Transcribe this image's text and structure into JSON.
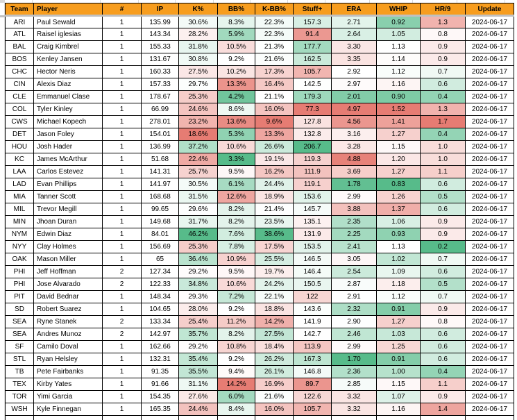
{
  "theme": {
    "header_bg": "#F79D1E",
    "grid_border": "#000000",
    "frozen_divider": "#C0C0C0",
    "gridline_light": "#D9D9D9"
  },
  "conditional_formatting": {
    "min_color": "#E67C73",
    "mid_color": "#FFFFFF",
    "max_color": "#57BB8A",
    "higher_better": [
      "kpct",
      "kbbpct",
      "stuff"
    ],
    "lower_better": [
      "bbpct",
      "era",
      "whip",
      "hr9"
    ]
  },
  "table": {
    "columns": [
      {
        "key": "team",
        "label": "Team"
      },
      {
        "key": "player",
        "label": "Player"
      },
      {
        "key": "num",
        "label": "#"
      },
      {
        "key": "ip",
        "label": "IP"
      },
      {
        "key": "kpct",
        "label": "K%"
      },
      {
        "key": "bbpct",
        "label": "BB%"
      },
      {
        "key": "kbbpct",
        "label": "K-BB%"
      },
      {
        "key": "stuff",
        "label": "Stuff+"
      },
      {
        "key": "era",
        "label": "ERA"
      },
      {
        "key": "whip",
        "label": "WHIP"
      },
      {
        "key": "hr9",
        "label": "HR/9"
      },
      {
        "key": "update",
        "label": "Update"
      }
    ],
    "rows": [
      {
        "team": "ARI",
        "player": "Paul Sewald",
        "num": "1",
        "ip": "135.99",
        "kpct": "30.6%",
        "bbpct": "8.3%",
        "kbbpct": "22.3%",
        "stuff": "157.3",
        "era": "2.71",
        "whip": "0.92",
        "hr9": "1.3",
        "update": "2024-06-17"
      },
      {
        "team": "ATL",
        "player": "Raisel iglesias",
        "num": "1",
        "ip": "143.34",
        "kpct": "28.2%",
        "bbpct": "5.9%",
        "kbbpct": "22.3%",
        "stuff": "91.4",
        "era": "2.64",
        "whip": "1.05",
        "hr9": "0.8",
        "update": "2024-06-17"
      },
      {
        "team": "BAL",
        "player": "Craig Kimbrel",
        "num": "1",
        "ip": "155.33",
        "kpct": "31.8%",
        "bbpct": "10.5%",
        "kbbpct": "21.3%",
        "stuff": "177.7",
        "era": "3.30",
        "whip": "1.13",
        "hr9": "0.9",
        "update": "2024-06-17"
      },
      {
        "team": "BOS",
        "player": "Kenley Jansen",
        "num": "1",
        "ip": "131.67",
        "kpct": "30.8%",
        "bbpct": "9.2%",
        "kbbpct": "21.6%",
        "stuff": "162.5",
        "era": "3.35",
        "whip": "1.14",
        "hr9": "0.9",
        "update": "2024-06-17"
      },
      {
        "team": "CHC",
        "player": "Hector Neris",
        "num": "1",
        "ip": "160.33",
        "kpct": "27.5%",
        "bbpct": "10.2%",
        "kbbpct": "17.3%",
        "stuff": "105.7",
        "era": "2.92",
        "whip": "1.12",
        "hr9": "0.7",
        "update": "2024-06-17"
      },
      {
        "team": "CIN",
        "player": "Alexis Diaz",
        "num": "1",
        "ip": "157.33",
        "kpct": "29.7%",
        "bbpct": "13.3%",
        "kbbpct": "16.4%",
        "stuff": "142.5",
        "era": "2.97",
        "whip": "1.16",
        "hr9": "0.6",
        "update": "2024-06-17"
      },
      {
        "team": "CLE",
        "player": "Emmanuel Clase",
        "num": "1",
        "ip": "178.67",
        "kpct": "25.3%",
        "bbpct": "4.2%",
        "kbbpct": "21.1%",
        "stuff": "179.3",
        "era": "2.01",
        "whip": "0.90",
        "hr9": "0.4",
        "update": "2024-06-17"
      },
      {
        "team": "COL",
        "player": "Tyler Kinley",
        "num": "1",
        "ip": "66.99",
        "kpct": "24.6%",
        "bbpct": "8.6%",
        "kbbpct": "16.0%",
        "stuff": "77.3",
        "era": "4.97",
        "whip": "1.52",
        "hr9": "1.3",
        "update": "2024-06-17"
      },
      {
        "team": "CWS",
        "player": "Michael Kopech",
        "num": "1",
        "ip": "278.01",
        "kpct": "23.2%",
        "bbpct": "13.6%",
        "kbbpct": "9.6%",
        "stuff": "127.8",
        "era": "4.56",
        "whip": "1.41",
        "hr9": "1.7",
        "update": "2024-06-17"
      },
      {
        "team": "DET",
        "player": "Jason Foley",
        "num": "1",
        "ip": "154.01",
        "kpct": "18.6%",
        "bbpct": "5.3%",
        "kbbpct": "13.3%",
        "stuff": "132.8",
        "era": "3.16",
        "whip": "1.27",
        "hr9": "0.4",
        "update": "2024-06-17"
      },
      {
        "team": "HOU",
        "player": "Josh Hader",
        "num": "1",
        "ip": "136.99",
        "kpct": "37.2%",
        "bbpct": "10.6%",
        "kbbpct": "26.6%",
        "stuff": "206.7",
        "era": "3.28",
        "whip": "1.15",
        "hr9": "1.0",
        "update": "2024-06-17"
      },
      {
        "team": "KC",
        "player": "James McArthur",
        "num": "1",
        "ip": "51.68",
        "kpct": "22.4%",
        "bbpct": "3.3%",
        "kbbpct": "19.1%",
        "stuff": "119.3",
        "era": "4.88",
        "whip": "1.20",
        "hr9": "1.0",
        "update": "2024-06-17"
      },
      {
        "team": "LAA",
        "player": "Carlos Estevez",
        "num": "1",
        "ip": "141.31",
        "kpct": "25.7%",
        "bbpct": "9.5%",
        "kbbpct": "16.2%",
        "stuff": "111.9",
        "era": "3.69",
        "whip": "1.27",
        "hr9": "1.1",
        "update": "2024-06-17"
      },
      {
        "team": "LAD",
        "player": "Evan Phillips",
        "num": "1",
        "ip": "141.97",
        "kpct": "30.5%",
        "bbpct": "6.1%",
        "kbbpct": "24.4%",
        "stuff": "119.1",
        "era": "1.78",
        "whip": "0.83",
        "hr9": "0.6",
        "update": "2024-06-17"
      },
      {
        "team": "MIA",
        "player": "Tanner Scott",
        "num": "1",
        "ip": "168.68",
        "kpct": "31.5%",
        "bbpct": "12.6%",
        "kbbpct": "18.9%",
        "stuff": "153.6",
        "era": "2.99",
        "whip": "1.26",
        "hr9": "0.5",
        "update": "2024-06-17"
      },
      {
        "team": "MIL",
        "player": "Trevor Megill",
        "num": "1",
        "ip": "99.65",
        "kpct": "29.6%",
        "bbpct": "8.2%",
        "kbbpct": "21.4%",
        "stuff": "145.7",
        "era": "3.88",
        "whip": "1.37",
        "hr9": "0.6",
        "update": "2024-06-17"
      },
      {
        "team": "MIN",
        "player": "Jhoan Duran",
        "num": "1",
        "ip": "149.68",
        "kpct": "31.7%",
        "bbpct": "8.2%",
        "kbbpct": "23.5%",
        "stuff": "135.1",
        "era": "2.35",
        "whip": "1.06",
        "hr9": "0.9",
        "update": "2024-06-17"
      },
      {
        "team": "NYM",
        "player": "Edwin Diaz",
        "num": "1",
        "ip": "84.01",
        "kpct": "46.2%",
        "bbpct": "7.6%",
        "kbbpct": "38.6%",
        "stuff": "131.9",
        "era": "2.25",
        "whip": "0.93",
        "hr9": "0.9",
        "update": "2024-06-17"
      },
      {
        "team": "NYY",
        "player": "Clay Holmes",
        "num": "1",
        "ip": "156.69",
        "kpct": "25.3%",
        "bbpct": "7.8%",
        "kbbpct": "17.5%",
        "stuff": "153.5",
        "era": "2.41",
        "whip": "1.13",
        "hr9": "0.2",
        "update": "2024-06-17"
      },
      {
        "team": "OAK",
        "player": "Mason Miller",
        "num": "1",
        "ip": "65",
        "kpct": "36.4%",
        "bbpct": "10.9%",
        "kbbpct": "25.5%",
        "stuff": "146.5",
        "era": "3.05",
        "whip": "1.02",
        "hr9": "0.7",
        "update": "2024-06-17"
      },
      {
        "team": "PHI",
        "player": "Jeff Hoffman",
        "num": "2",
        "ip": "127.34",
        "kpct": "29.2%",
        "bbpct": "9.5%",
        "kbbpct": "19.7%",
        "stuff": "146.4",
        "era": "2.54",
        "whip": "1.09",
        "hr9": "0.6",
        "update": "2024-06-17"
      },
      {
        "team": "PHI",
        "player": "Jose Alvarado",
        "num": "2",
        "ip": "122.33",
        "kpct": "34.8%",
        "bbpct": "10.6%",
        "kbbpct": "24.2%",
        "stuff": "150.5",
        "era": "2.87",
        "whip": "1.18",
        "hr9": "0.5",
        "update": "2024-06-17"
      },
      {
        "team": "PIT",
        "player": "David Bednar",
        "num": "1",
        "ip": "148.34",
        "kpct": "29.3%",
        "bbpct": "7.2%",
        "kbbpct": "22.1%",
        "stuff": "122",
        "era": "2.91",
        "whip": "1.12",
        "hr9": "0.7",
        "update": "2024-06-17"
      },
      {
        "team": "SD",
        "player": "Robert Suarez",
        "num": "1",
        "ip": "104.65",
        "kpct": "28.0%",
        "bbpct": "9.2%",
        "kbbpct": "18.8%",
        "stuff": "143.6",
        "era": "2.32",
        "whip": "0.91",
        "hr9": "0.9",
        "update": "2024-06-17"
      },
      {
        "team": "SEA",
        "player": "Ryne Stanek",
        "num": "2",
        "ip": "133.34",
        "kpct": "25.4%",
        "bbpct": "11.2%",
        "kbbpct": "14.2%",
        "stuff": "141.9",
        "era": "2.90",
        "whip": "1.27",
        "hr9": "0.8",
        "update": "2024-06-17"
      },
      {
        "team": "SEA",
        "player": "Andres Munoz",
        "num": "2",
        "ip": "142.97",
        "kpct": "35.7%",
        "bbpct": "8.2%",
        "kbbpct": "27.5%",
        "stuff": "142.7",
        "era": "2.46",
        "whip": "1.03",
        "hr9": "0.6",
        "update": "2024-06-17"
      },
      {
        "team": "SF",
        "player": "Camilo Doval",
        "num": "1",
        "ip": "162.66",
        "kpct": "29.2%",
        "bbpct": "10.8%",
        "kbbpct": "18.4%",
        "stuff": "113.9",
        "era": "2.99",
        "whip": "1.25",
        "hr9": "0.6",
        "update": "2024-06-17"
      },
      {
        "team": "STL",
        "player": "Ryan Helsley",
        "num": "1",
        "ip": "132.31",
        "kpct": "35.4%",
        "bbpct": "9.2%",
        "kbbpct": "26.2%",
        "stuff": "167.3",
        "era": "1.70",
        "whip": "0.91",
        "hr9": "0.6",
        "update": "2024-06-17"
      },
      {
        "team": "TB",
        "player": "Pete Fairbanks",
        "num": "1",
        "ip": "91.35",
        "kpct": "35.5%",
        "bbpct": "9.4%",
        "kbbpct": "26.1%",
        "stuff": "146.8",
        "era": "2.36",
        "whip": "1.00",
        "hr9": "0.4",
        "update": "2024-06-17"
      },
      {
        "team": "TEX",
        "player": "Kirby Yates",
        "num": "1",
        "ip": "91.66",
        "kpct": "31.1%",
        "bbpct": "14.2%",
        "kbbpct": "16.9%",
        "stuff": "89.7",
        "era": "2.85",
        "whip": "1.15",
        "hr9": "1.1",
        "update": "2024-06-17"
      },
      {
        "team": "TOR",
        "player": "Yimi Garcia",
        "num": "1",
        "ip": "154.35",
        "kpct": "27.6%",
        "bbpct": "6.0%",
        "kbbpct": "21.6%",
        "stuff": "122.6",
        "era": "3.32",
        "whip": "1.07",
        "hr9": "0.9",
        "update": "2024-06-17"
      },
      {
        "team": "WSH",
        "player": "Kyle Finnegan",
        "num": "1",
        "ip": "165.35",
        "kpct": "24.4%",
        "bbpct": "8.4%",
        "kbbpct": "16.0%",
        "stuff": "105.7",
        "era": "3.32",
        "whip": "1.16",
        "hr9": "1.4",
        "update": "2024-06-17"
      }
    ]
  }
}
